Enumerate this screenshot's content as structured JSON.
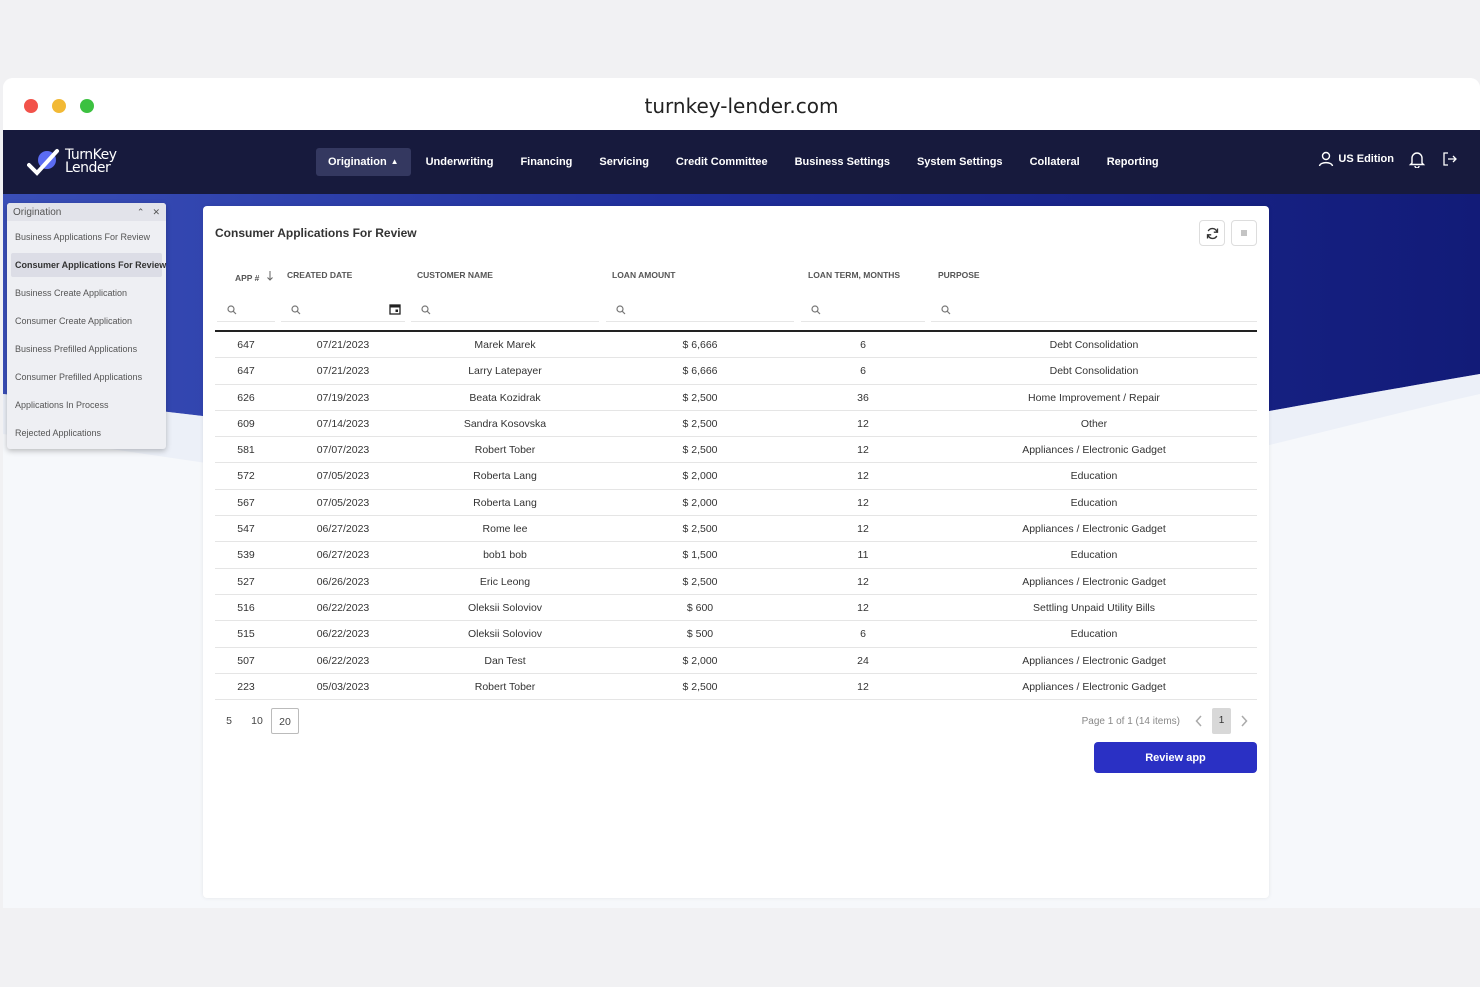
{
  "browser": {
    "url": "turnkey-lender.com"
  },
  "logo": {
    "line1": "TurnKey",
    "line2": "Lender"
  },
  "nav": {
    "items": [
      {
        "label": "Origination",
        "active": true
      },
      {
        "label": "Underwriting"
      },
      {
        "label": "Financing"
      },
      {
        "label": "Servicing"
      },
      {
        "label": "Credit Committee"
      },
      {
        "label": "Business Settings"
      },
      {
        "label": "System Settings"
      },
      {
        "label": "Collateral"
      },
      {
        "label": "Reporting"
      }
    ],
    "edition": "US Edition"
  },
  "sidepanel": {
    "title": "Origination",
    "items": [
      "Business Applications For Review",
      "Consumer Applications For Review",
      "Business Create Application",
      "Consumer Create Application",
      "Business Prefilled Applications",
      "Consumer Prefilled Applications",
      "Applications In Process",
      "Rejected Applications"
    ],
    "active_index": 1
  },
  "card": {
    "title": "Consumer Applications For Review"
  },
  "table": {
    "columns": [
      "APP #",
      "CREATED DATE",
      "CUSTOMER NAME",
      "LOAN AMOUNT",
      "LOAN TERM, MONTHS",
      "PURPOSE"
    ],
    "rows": [
      [
        "647",
        "07/21/2023",
        "Marek Marek",
        "$ 6,666",
        "6",
        "Debt Consolidation"
      ],
      [
        "647",
        "07/21/2023",
        "Larry Latepayer",
        "$ 6,666",
        "6",
        "Debt Consolidation"
      ],
      [
        "626",
        "07/19/2023",
        "Beata Kozidrak",
        "$ 2,500",
        "36",
        "Home Improvement / Repair"
      ],
      [
        "609",
        "07/14/2023",
        "Sandra Kosovska",
        "$ 2,500",
        "12",
        "Other"
      ],
      [
        "581",
        "07/07/2023",
        "Robert Tober",
        "$ 2,500",
        "12",
        "Appliances / Electronic Gadget"
      ],
      [
        "572",
        "07/05/2023",
        "Roberta Lang",
        "$ 2,000",
        "12",
        "Education"
      ],
      [
        "567",
        "07/05/2023",
        "Roberta Lang",
        "$ 2,000",
        "12",
        "Education"
      ],
      [
        "547",
        "06/27/2023",
        "Rome lee",
        "$ 2,500",
        "12",
        "Appliances / Electronic Gadget"
      ],
      [
        "539",
        "06/27/2023",
        "bob1 bob",
        "$ 1,500",
        "11",
        "Education"
      ],
      [
        "527",
        "06/26/2023",
        "Eric Leong",
        "$ 2,500",
        "12",
        "Appliances / Electronic Gadget"
      ],
      [
        "516",
        "06/22/2023",
        "Oleksii Soloviov",
        "$ 600",
        "12",
        "Settling Unpaid Utility Bills"
      ],
      [
        "515",
        "06/22/2023",
        "Oleksii Soloviov",
        "$ 500",
        "6",
        "Education"
      ],
      [
        "507",
        "06/22/2023",
        "Dan Test",
        "$ 2,000",
        "24",
        "Appliances / Electronic Gadget"
      ],
      [
        "223",
        "05/03/2023",
        "Robert Tober",
        "$ 2,500",
        "12",
        "Appliances / Electronic Gadget"
      ]
    ]
  },
  "pager": {
    "sizes": [
      "5",
      "10",
      "20"
    ],
    "selected_size": "20",
    "info": "Page 1 of 1 (14 items)",
    "current_page": "1"
  },
  "actions": {
    "review": "Review app"
  },
  "colors": {
    "navbar": "#171a3d",
    "accent": "#2a30c4",
    "wave": "#1a2a8c"
  },
  "icons": [
    "refresh-icon",
    "settings-icon",
    "search-icon",
    "calendar-icon",
    "user-icon",
    "bell-icon",
    "logout-icon",
    "sort-down-icon",
    "chevron-left-icon",
    "chevron-right-icon"
  ]
}
